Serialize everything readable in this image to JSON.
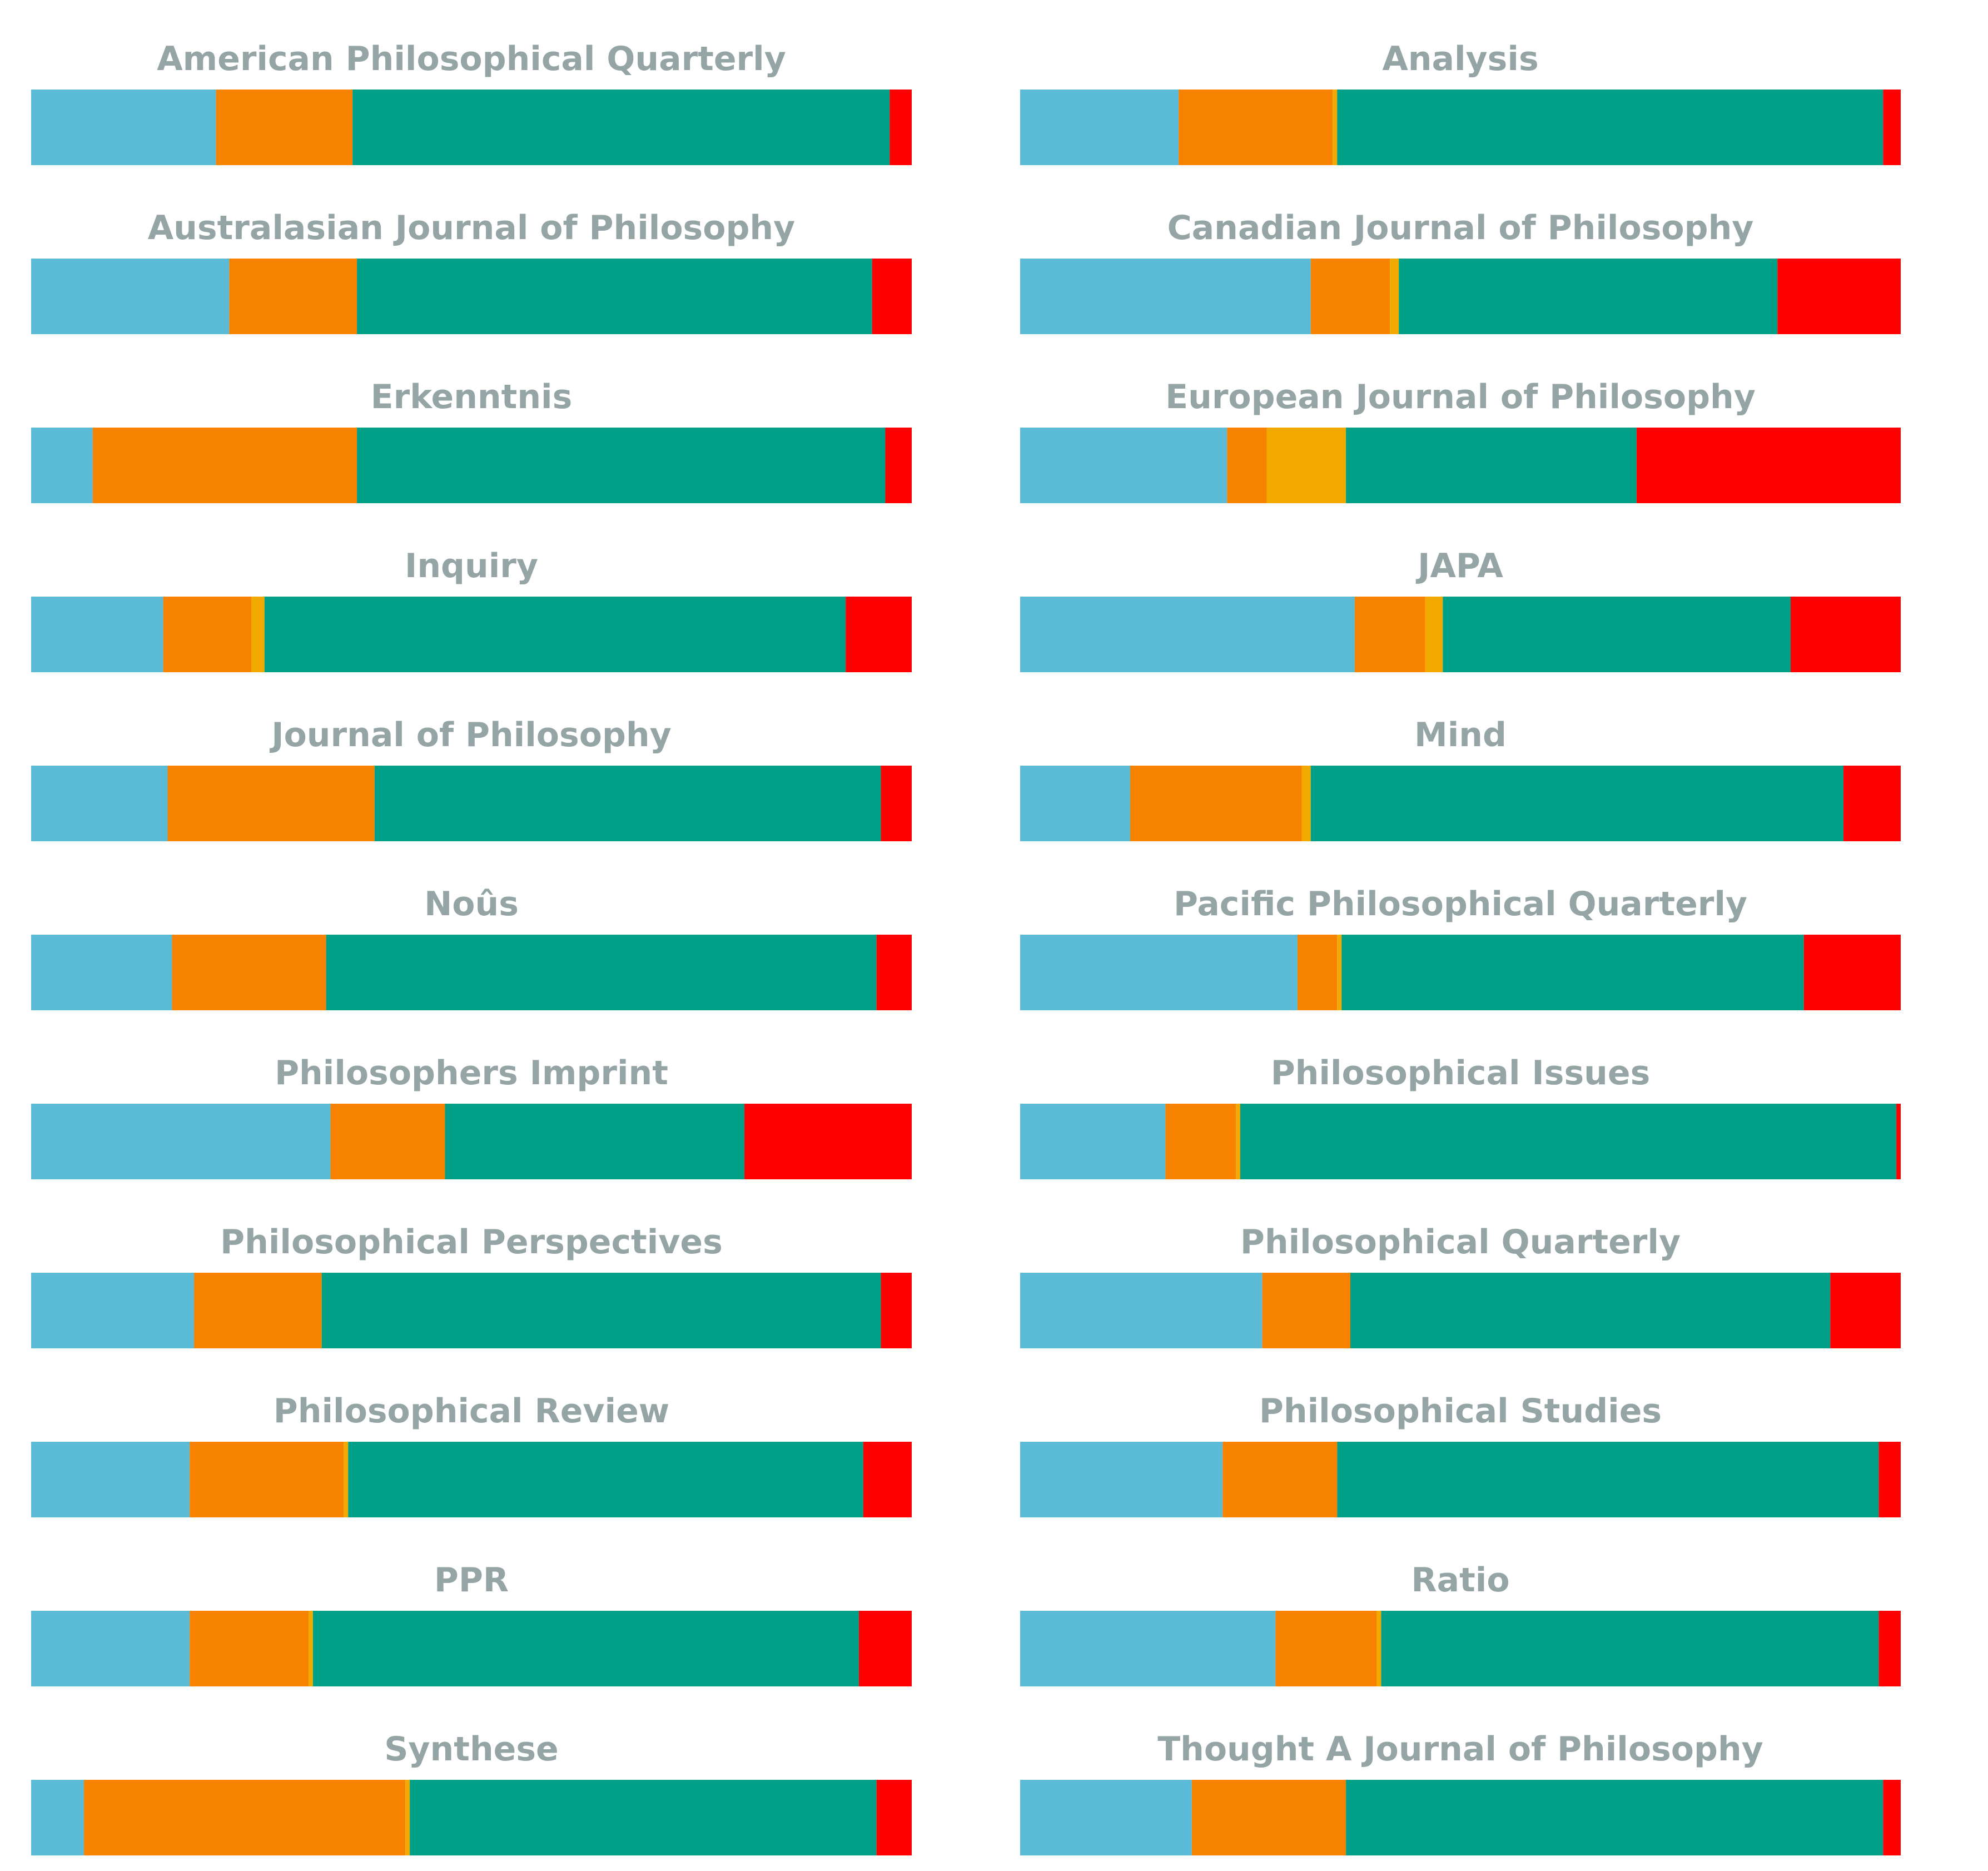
{
  "colors": {
    "title": "#95a5a6",
    "segments": [
      "#5bbad5",
      "#f78200",
      "#f2aa00",
      "#00a088",
      "#ff0000"
    ]
  },
  "chart_data": {
    "type": "bar",
    "orientation": "horizontal",
    "stacked": true,
    "normalized": true,
    "xlim": [
      0,
      1
    ],
    "axes_visible": false,
    "grid": false,
    "legend": "none",
    "panels": [
      {
        "title": "American Philosophical Quarterly",
        "values": [
          0.21,
          0.155,
          0.0,
          0.61,
          0.025
        ]
      },
      {
        "title": "Analysis",
        "values": [
          0.18,
          0.175,
          0.005,
          0.62,
          0.02
        ]
      },
      {
        "title": "Australasian Journal of Philosophy",
        "values": [
          0.225,
          0.145,
          0.0,
          0.585,
          0.045
        ]
      },
      {
        "title": "Canadian Journal of Philosophy",
        "values": [
          0.33,
          0.09,
          0.01,
          0.43,
          0.14
        ]
      },
      {
        "title": "Erkenntnis",
        "values": [
          0.07,
          0.3,
          0.0,
          0.6,
          0.03
        ]
      },
      {
        "title": "European Journal of Philosophy",
        "values": [
          0.235,
          0.045,
          0.09,
          0.33,
          0.3
        ]
      },
      {
        "title": "Inquiry",
        "values": [
          0.15,
          0.1,
          0.015,
          0.66,
          0.075
        ]
      },
      {
        "title": "JAPA",
        "values": [
          0.38,
          0.08,
          0.02,
          0.395,
          0.125
        ]
      },
      {
        "title": "Journal of Philosophy",
        "values": [
          0.155,
          0.235,
          0.0,
          0.575,
          0.035
        ]
      },
      {
        "title": "Mind",
        "values": [
          0.125,
          0.195,
          0.01,
          0.605,
          0.065
        ]
      },
      {
        "title": "Noûs",
        "values": [
          0.16,
          0.175,
          0.0,
          0.625,
          0.04
        ]
      },
      {
        "title": "Pacific Philosophical Quarterly",
        "values": [
          0.315,
          0.045,
          0.005,
          0.525,
          0.11
        ]
      },
      {
        "title": "Philosophers Imprint",
        "values": [
          0.34,
          0.13,
          0.0,
          0.34,
          0.19
        ]
      },
      {
        "title": "Philosophical Issues",
        "values": [
          0.165,
          0.08,
          0.005,
          0.745,
          0.005
        ]
      },
      {
        "title": "Philosophical Perspectives",
        "values": [
          0.185,
          0.145,
          0.0,
          0.635,
          0.035
        ]
      },
      {
        "title": "Philosophical Quarterly",
        "values": [
          0.275,
          0.1,
          0.0,
          0.545,
          0.08
        ]
      },
      {
        "title": "Philosophical Review",
        "values": [
          0.18,
          0.175,
          0.005,
          0.585,
          0.055
        ]
      },
      {
        "title": "Philosophical Studies",
        "values": [
          0.23,
          0.13,
          0.0,
          0.615,
          0.025
        ]
      },
      {
        "title": "PPR",
        "values": [
          0.18,
          0.135,
          0.005,
          0.62,
          0.06
        ]
      },
      {
        "title": "Ratio",
        "values": [
          0.29,
          0.115,
          0.005,
          0.565,
          0.025
        ]
      },
      {
        "title": "Synthese",
        "values": [
          0.06,
          0.365,
          0.005,
          0.53,
          0.04
        ]
      },
      {
        "title": "Thought A Journal of Philosophy",
        "values": [
          0.195,
          0.175,
          0.0,
          0.61,
          0.02
        ]
      }
    ]
  }
}
